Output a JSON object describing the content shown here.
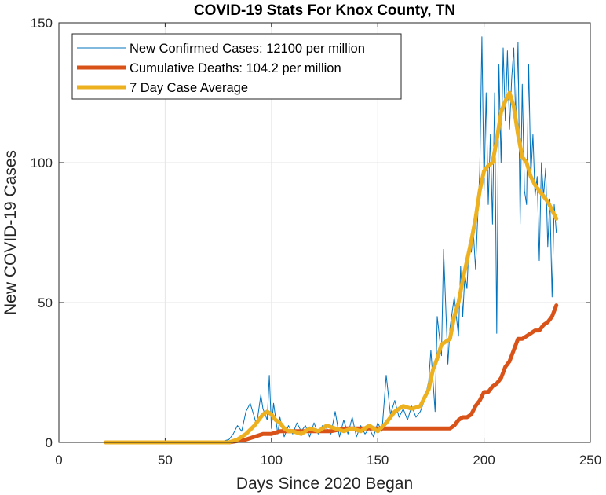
{
  "chart_data": {
    "type": "line",
    "title": "COVID-19 Stats For Knox County, TN",
    "xlabel": "Days Since 2020 Began",
    "ylabel": "New COVID-19 Cases",
    "xlim": [
      0,
      250
    ],
    "ylim": [
      0,
      150
    ],
    "xticks": [
      0,
      50,
      100,
      150,
      200,
      250
    ],
    "yticks": [
      0,
      50,
      100,
      150
    ],
    "grid": true,
    "legend_position": "top-left",
    "series": [
      {
        "name": "New Confirmed Cases: 12100 per million",
        "color": "#0072BD",
        "style": "thin",
        "x": [
          22,
          40,
          60,
          75,
          80,
          82,
          84,
          86,
          88,
          90,
          92,
          93,
          95,
          96,
          98,
          99,
          100,
          101,
          103,
          104,
          106,
          108,
          110,
          112,
          114,
          116,
          118,
          120,
          122,
          124,
          126,
          128,
          130,
          132,
          134,
          136,
          138,
          140,
          142,
          144,
          146,
          148,
          150,
          152,
          154,
          156,
          158,
          160,
          162,
          164,
          166,
          168,
          170,
          172,
          174,
          175,
          177,
          178,
          180,
          181,
          183,
          184,
          186,
          188,
          189,
          190,
          191,
          192,
          193,
          194,
          195,
          196,
          197,
          198,
          199,
          200,
          201,
          202,
          203,
          204,
          205,
          206,
          207,
          208,
          209,
          210,
          211,
          212,
          213,
          214,
          215,
          216,
          217,
          218,
          219,
          220,
          221,
          222,
          223,
          224,
          225,
          226,
          227,
          228,
          229,
          230,
          231,
          232,
          233,
          234
        ],
        "y": [
          0,
          0,
          0,
          0,
          1,
          3,
          6,
          4,
          11,
          14,
          9,
          6,
          17,
          12,
          8,
          24,
          5,
          14,
          3,
          9,
          2,
          6,
          3,
          7,
          4,
          6,
          2,
          7,
          3,
          6,
          5,
          3,
          11,
          2,
          8,
          3,
          9,
          2,
          6,
          3,
          5,
          2,
          7,
          4,
          24,
          10,
          15,
          9,
          12,
          8,
          13,
          9,
          11,
          15,
          22,
          33,
          11,
          45,
          31,
          69,
          28,
          41,
          52,
          38,
          63,
          45,
          60,
          55,
          72,
          68,
          75,
          62,
          80,
          97,
          145,
          90,
          125,
          85,
          110,
          78,
          125,
          39,
          135,
          100,
          141,
          115,
          140,
          112,
          130,
          141,
          113,
          143,
          78,
          128,
          90,
          85,
          135,
          95,
          110,
          88,
          95,
          65,
          100,
          88,
          98,
          70,
          87,
          52,
          85,
          75
        ]
      },
      {
        "name": "Cumulative Deaths: 104.2 per million",
        "color": "#D95319",
        "style": "thick",
        "x": [
          22,
          40,
          60,
          80,
          88,
          92,
          96,
          100,
          104,
          108,
          112,
          116,
          120,
          124,
          128,
          135,
          150,
          170,
          180,
          184,
          186,
          188,
          190,
          192,
          194,
          196,
          198,
          200,
          202,
          204,
          206,
          208,
          210,
          212,
          214,
          216,
          218,
          220,
          222,
          224,
          226,
          228,
          230,
          232,
          234
        ],
        "y": [
          0,
          0,
          0,
          0,
          1,
          2,
          3,
          3,
          4,
          4,
          4,
          4,
          4,
          4,
          4,
          5,
          5,
          5,
          5,
          5,
          6,
          8,
          9,
          9,
          10,
          13,
          15,
          18,
          18,
          20,
          21,
          23,
          27,
          29,
          33,
          37,
          37,
          38,
          39,
          40,
          40,
          42,
          43,
          45,
          49
        ]
      },
      {
        "name": "7 Day Case Average",
        "color": "#EDB120",
        "style": "thick",
        "x": [
          22,
          40,
          60,
          75,
          80,
          84,
          88,
          92,
          96,
          98,
          100,
          102,
          104,
          106,
          108,
          110,
          114,
          118,
          122,
          126,
          130,
          134,
          138,
          142,
          146,
          150,
          154,
          158,
          162,
          166,
          170,
          174,
          176,
          178,
          180,
          182,
          184,
          186,
          188,
          190,
          192,
          194,
          196,
          198,
          200,
          202,
          204,
          206,
          208,
          210,
          212,
          214,
          216,
          218,
          220,
          222,
          224,
          226,
          228,
          230,
          232,
          234
        ],
        "y": [
          0,
          0,
          0,
          0,
          0,
          1,
          3,
          6,
          10,
          11,
          10,
          8,
          7,
          5,
          4,
          4,
          3,
          5,
          4,
          6,
          5,
          4,
          5,
          4,
          6,
          4,
          7,
          11,
          13,
          12,
          13,
          19,
          26,
          30,
          35,
          36,
          37,
          45,
          50,
          58,
          65,
          72,
          80,
          90,
          97,
          99,
          100,
          108,
          118,
          122,
          125,
          120,
          110,
          102,
          100,
          95,
          92,
          90,
          88,
          86,
          83,
          80
        ]
      }
    ]
  }
}
